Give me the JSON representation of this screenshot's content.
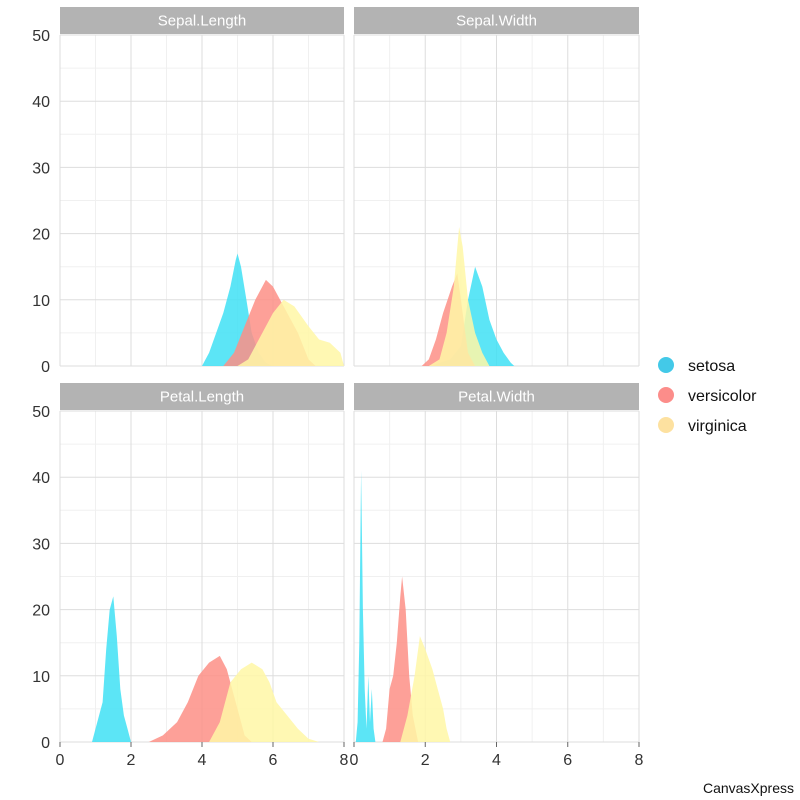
{
  "chart_data": {
    "type": "area",
    "facets": [
      "Sepal.Length",
      "Sepal.Width",
      "Petal.Length",
      "Petal.Width"
    ],
    "x_range": [
      0,
      8
    ],
    "y_range": [
      0,
      50
    ],
    "x_ticks": [
      0,
      2,
      4,
      6,
      8
    ],
    "y_ticks": [
      0,
      10,
      20,
      30,
      40,
      50
    ],
    "grid": true,
    "legend_position": "right",
    "legend_entries": [
      "setosa",
      "versicolor",
      "virginica"
    ],
    "colors": {
      "setosa": "#3fe0f5",
      "versicolor": "#fd8f86",
      "virginica": "#fff7a6",
      "strip_background": "#b3b3b3",
      "grid_major": "#dddddd",
      "grid_minor": "#f0f0f0",
      "legend_setosa": "#43c9e8",
      "legend_versicolor": "#fc8d8a",
      "legend_virginica": "#fde1a0"
    },
    "panels": [
      {
        "title": "Sepal.Length",
        "series": [
          {
            "name": "setosa",
            "points": [
              [
                4.0,
                0
              ],
              [
                4.2,
                2
              ],
              [
                4.4,
                5
              ],
              [
                4.6,
                8
              ],
              [
                4.8,
                12
              ],
              [
                4.95,
                16
              ],
              [
                5.0,
                17
              ],
              [
                5.1,
                15
              ],
              [
                5.25,
                10
              ],
              [
                5.4,
                5
              ],
              [
                5.6,
                2
              ],
              [
                5.8,
                0.5
              ],
              [
                6.0,
                0
              ]
            ]
          },
          {
            "name": "versicolor",
            "points": [
              [
                4.6,
                0
              ],
              [
                4.9,
                2
              ],
              [
                5.2,
                6
              ],
              [
                5.5,
                10
              ],
              [
                5.8,
                13
              ],
              [
                6.0,
                12
              ],
              [
                6.2,
                10
              ],
              [
                6.4,
                8
              ],
              [
                6.7,
                5
              ],
              [
                7.0,
                1
              ],
              [
                7.2,
                0
              ]
            ]
          },
          {
            "name": "virginica",
            "points": [
              [
                5.0,
                0
              ],
              [
                5.3,
                1
              ],
              [
                5.6,
                4
              ],
              [
                6.0,
                8
              ],
              [
                6.3,
                10
              ],
              [
                6.6,
                9
              ],
              [
                7.0,
                6
              ],
              [
                7.3,
                4
              ],
              [
                7.6,
                3.5
              ],
              [
                7.9,
                2
              ],
              [
                8.0,
                0
              ]
            ]
          }
        ]
      },
      {
        "title": "Sepal.Width",
        "series": [
          {
            "name": "setosa",
            "points": [
              [
                2.2,
                0
              ],
              [
                2.4,
                0.5
              ],
              [
                2.7,
                1
              ],
              [
                3.0,
                3
              ],
              [
                3.2,
                10
              ],
              [
                3.4,
                15
              ],
              [
                3.6,
                12
              ],
              [
                3.8,
                7
              ],
              [
                4.0,
                4
              ],
              [
                4.2,
                2
              ],
              [
                4.4,
                0.5
              ],
              [
                4.5,
                0
              ]
            ]
          },
          {
            "name": "versicolor",
            "points": [
              [
                1.9,
                0
              ],
              [
                2.1,
                1
              ],
              [
                2.3,
                4
              ],
              [
                2.5,
                8
              ],
              [
                2.75,
                12
              ],
              [
                2.9,
                14
              ],
              [
                3.0,
                10
              ],
              [
                3.1,
                6
              ],
              [
                3.2,
                2
              ],
              [
                3.4,
                0
              ]
            ]
          },
          {
            "name": "virginica",
            "points": [
              [
                2.1,
                0
              ],
              [
                2.4,
                1
              ],
              [
                2.6,
                5
              ],
              [
                2.8,
                12
              ],
              [
                2.95,
                21
              ],
              [
                3.05,
                18
              ],
              [
                3.2,
                10
              ],
              [
                3.4,
                5
              ],
              [
                3.6,
                2
              ],
              [
                3.8,
                0
              ]
            ]
          }
        ]
      },
      {
        "title": "Petal.Length",
        "series": [
          {
            "name": "setosa",
            "points": [
              [
                0.9,
                0
              ],
              [
                1.0,
                2
              ],
              [
                1.2,
                6
              ],
              [
                1.3,
                14
              ],
              [
                1.4,
                20
              ],
              [
                1.5,
                22
              ],
              [
                1.6,
                16
              ],
              [
                1.7,
                8
              ],
              [
                1.8,
                4
              ],
              [
                1.9,
                2
              ],
              [
                2.0,
                0
              ]
            ]
          },
          {
            "name": "versicolor",
            "points": [
              [
                2.5,
                0
              ],
              [
                2.9,
                1
              ],
              [
                3.3,
                3
              ],
              [
                3.6,
                6
              ],
              [
                3.9,
                10
              ],
              [
                4.2,
                12
              ],
              [
                4.5,
                13
              ],
              [
                4.7,
                11
              ],
              [
                5.0,
                5
              ],
              [
                5.2,
                1
              ],
              [
                5.4,
                0
              ]
            ]
          },
          {
            "name": "virginica",
            "points": [
              [
                4.2,
                0
              ],
              [
                4.5,
                3
              ],
              [
                4.8,
                9
              ],
              [
                5.1,
                11
              ],
              [
                5.4,
                12
              ],
              [
                5.7,
                11
              ],
              [
                5.9,
                9
              ],
              [
                6.1,
                6
              ],
              [
                6.4,
                4
              ],
              [
                6.7,
                2
              ],
              [
                7.0,
                0.5
              ],
              [
                7.3,
                0
              ]
            ]
          }
        ]
      },
      {
        "title": "Petal.Width",
        "series": [
          {
            "name": "setosa",
            "points": [
              [
                0.05,
                0
              ],
              [
                0.1,
                3
              ],
              [
                0.15,
                15
              ],
              [
                0.2,
                41
              ],
              [
                0.25,
                20
              ],
              [
                0.3,
                8
              ],
              [
                0.35,
                2
              ],
              [
                0.4,
                10
              ],
              [
                0.45,
                3
              ],
              [
                0.5,
                8
              ],
              [
                0.55,
                2
              ],
              [
                0.6,
                0
              ]
            ]
          },
          {
            "name": "versicolor",
            "points": [
              [
                0.8,
                0
              ],
              [
                0.9,
                2
              ],
              [
                1.0,
                8
              ],
              [
                1.1,
                10
              ],
              [
                1.2,
                15
              ],
              [
                1.3,
                22
              ],
              [
                1.35,
                25
              ],
              [
                1.45,
                20
              ],
              [
                1.55,
                10
              ],
              [
                1.65,
                4
              ],
              [
                1.8,
                0
              ]
            ]
          },
          {
            "name": "virginica",
            "points": [
              [
                1.3,
                0
              ],
              [
                1.5,
                4
              ],
              [
                1.7,
                10
              ],
              [
                1.85,
                16
              ],
              [
                2.0,
                14
              ],
              [
                2.2,
                11
              ],
              [
                2.35,
                8
              ],
              [
                2.5,
                5
              ],
              [
                2.6,
                2
              ],
              [
                2.7,
                0
              ]
            ]
          }
        ]
      }
    ]
  },
  "watermark": "CanvasXpress"
}
